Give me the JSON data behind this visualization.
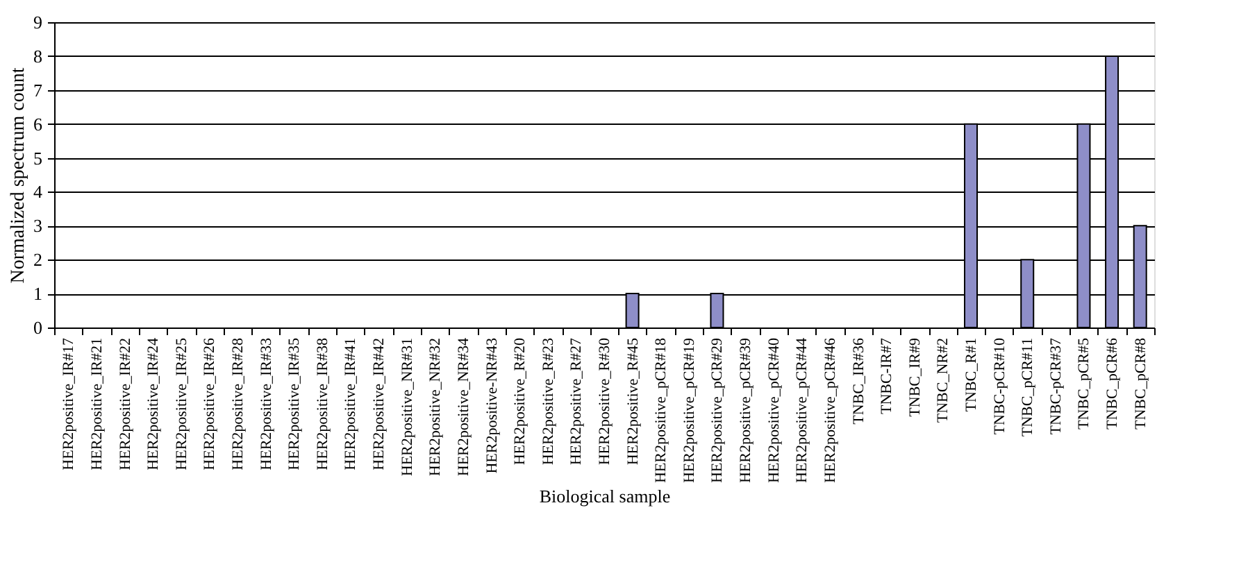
{
  "chart_data": {
    "type": "bar",
    "xlabel": "Biological sample",
    "ylabel": "Normalized spectrum count",
    "categories": [
      "HER2positive_IR#17",
      "HER2positive_IR#21",
      "HER2positive_IR#22",
      "HER2positive_IR#24",
      "HER2positive_IR#25",
      "HER2positive_IR#26",
      "HER2positive_IR#28",
      "HER2positive_IR#33",
      "HER2positive_IR#35",
      "HER2positive_IR#38",
      "HER2positive_IR#41",
      "HER2positive_IR#42",
      "HER2positive_NR#31",
      "HER2positive_NR#32",
      "HER2positive_NR#34",
      "HER2positive-NR#43",
      "HER2positive_R#20",
      "HER2positive_R#23",
      "HER2positive_R#27",
      "HER2positive_R#30",
      "HER2positive_R#45",
      "HER2positive_pCR#18",
      "HER2positive_pCR#19",
      "HER2positive_pCR#29",
      "HER2positive_pCR#39",
      "HER2positive_pCR#40",
      "HER2positive_pCR#44",
      "HER2positive_pCR#46",
      "TNBC_IR#36",
      "TNBC-IR#7",
      "TNBC_IR#9",
      "TNBC_NR#2",
      "TNBC_R#1",
      "TNBC-pCR#10",
      "TNBC_pCR#11",
      "TNBC-pCR#37",
      "TNBC_pCR#5",
      "TNBC_pCR#6",
      "TNBC_pCR#8"
    ],
    "values": [
      0,
      0,
      0,
      0,
      0,
      0,
      0,
      0,
      0,
      0,
      0,
      0,
      0,
      0,
      0,
      0,
      0,
      0,
      0,
      0,
      1,
      0,
      0,
      1,
      0,
      0,
      0,
      0,
      0,
      0,
      0,
      0,
      6,
      0,
      2,
      0,
      6,
      8,
      3
    ],
    "color": "#8e8ec8",
    "ylim": [
      0,
      9
    ],
    "yticks": [
      0,
      1,
      2,
      3,
      4,
      5,
      6,
      7,
      8,
      9
    ],
    "grid": "y"
  }
}
